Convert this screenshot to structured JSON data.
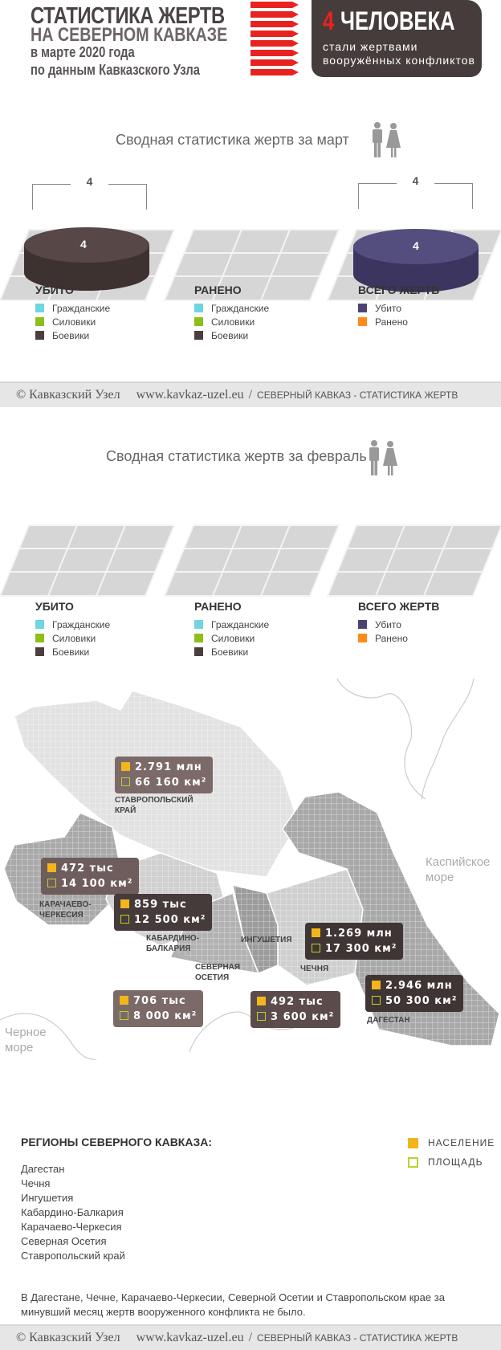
{
  "header": {
    "title_line1": "СТАТИСТИКА ЖЕРТВ",
    "title_line2": "НА СЕВЕРНОМ КАВКАЗЕ",
    "subtitle_line1": "в марте 2020 года",
    "subtitle_line2": "по данным Кавказского Узла",
    "badge": {
      "number": "4",
      "word": "ЧЕЛОВЕКА",
      "text": "стали жертвами вооружённых конфликтов"
    }
  },
  "colors": {
    "civilians": "#6fd6e0",
    "security": "#8dbf1a",
    "militants": "#4a3f3e",
    "killed_total": "#4c4470",
    "wounded_total": "#ff8a1a",
    "accent_red": "#e8231f"
  },
  "march": {
    "title": "Сводная статистика жертв за март",
    "killed_total_label": "4",
    "killed_disc_value": "4",
    "total_bracket_label": "4",
    "total_disc_value": "4"
  },
  "february": {
    "title": "Сводная статистика жертв за февраль"
  },
  "legends": {
    "killed": {
      "heading": "УБИТО",
      "items": [
        "Гражданские",
        "Силовики",
        "Боевики"
      ]
    },
    "wounded": {
      "heading": "РАНЕНО",
      "items": [
        "Гражданские",
        "Силовики",
        "Боевики"
      ]
    },
    "total": {
      "heading": "ВСЕГО ЖЕРТВ",
      "items": [
        "Убито",
        "Ранено"
      ]
    }
  },
  "footer": {
    "copyright": "© Кавказский Узел",
    "url": "www.kavkaz-uzel.eu",
    "separator": "/",
    "caption": "СЕВЕРНЫЙ КАВКАЗ - СТАТИСТИКА ЖЕРТВ"
  },
  "map": {
    "seas": {
      "caspian": [
        "Каспийское",
        "море"
      ],
      "black": [
        "Черное",
        "море"
      ]
    },
    "regions": [
      {
        "name": "СТАВРОПОЛЬСКИЙ КРАЙ",
        "population": "2.791 млн",
        "area": "66 160 км²"
      },
      {
        "name": "КАРАЧАЕВО-ЧЕРКЕСИЯ",
        "population": "472 тыс",
        "area": "14 100 км²"
      },
      {
        "name": "КАБАРДИНО-БАЛКАРИЯ",
        "population": "859 тыс",
        "area": "12 500 км²"
      },
      {
        "name": "СЕВЕРНАЯ ОСЕТИЯ",
        "population": "706 тыс",
        "area": "8 000 км²"
      },
      {
        "name": "ИНГУШЕТИЯ",
        "population": "492 тыс",
        "area": "3 600 км²"
      },
      {
        "name": "ЧЕЧНЯ",
        "population": "1.269 млн",
        "area": "17 300 км²"
      },
      {
        "name": "ДАГЕСТАН",
        "population": "2.946 млн",
        "area": "50 300 км²"
      }
    ]
  },
  "regions_list": {
    "title": "РЕГИОНЫ СЕВЕРНОГО КАВКАЗА:",
    "items": [
      "Дагестан",
      "Чечня",
      "Ингушетия",
      "Кабардино-Балкария",
      "Карачаево-Черкесия",
      "Северная Осетия",
      "Ставропольский край"
    ],
    "key": {
      "population": "НАСЕЛЕНИЕ",
      "area": "ПЛОЩАДЬ"
    },
    "note": "В Дагестане, Чечне, Карачаево-Черкесии, Северной Осетии и Ставропольском крае за минувший месяц жертв вооруженного конфликта не было."
  }
}
